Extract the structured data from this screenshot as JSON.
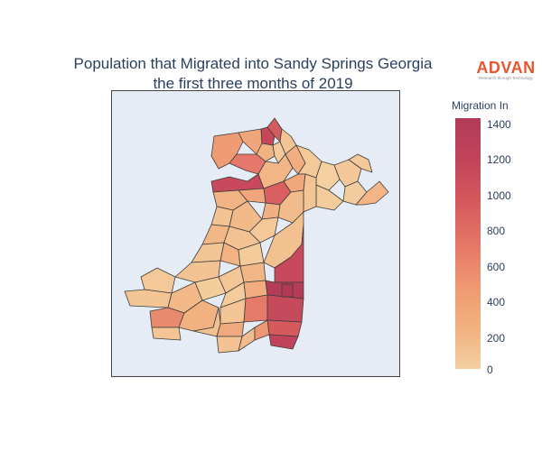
{
  "title": {
    "line1": "Population that Migrated into Sandy Springs Georgia",
    "line2": "the first three months of 2019"
  },
  "logo": {
    "word": "ADVAN",
    "tagline": "Research through Technology"
  },
  "colorbar": {
    "title": "Migration In",
    "ticks": [
      "1400",
      "1200",
      "1000",
      "800",
      "600",
      "400",
      "200",
      "0"
    ],
    "min": 0,
    "max": 1400,
    "colors": [
      "#f3cfa0",
      "#f2b07f",
      "#ef9871",
      "#e57667",
      "#d5585d",
      "#c24459",
      "#b23a58"
    ]
  },
  "map": {
    "background": "#e5ecf6",
    "boundary_color": "#3c3c3c"
  }
}
